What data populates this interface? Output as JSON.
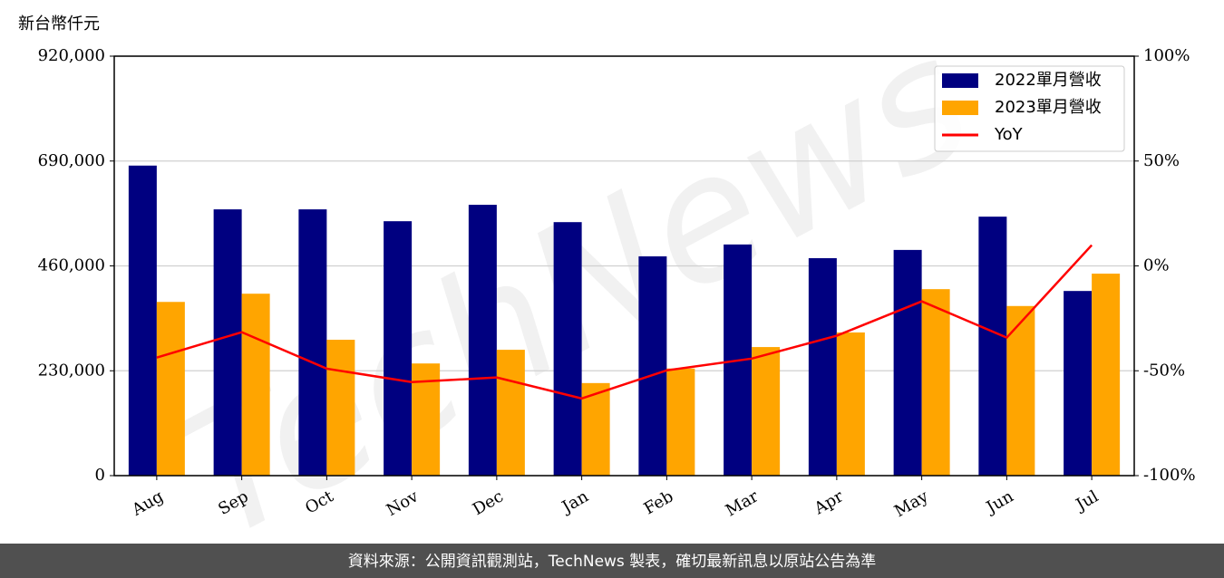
{
  "chart_data": {
    "type": "bar-line",
    "y_label": "新台幣仟元",
    "categories": [
      "Aug",
      "Sep",
      "Oct",
      "Nov",
      "Dec",
      "Jan",
      "Feb",
      "Mar",
      "Apr",
      "May",
      "Jun",
      "Jul"
    ],
    "series": [
      {
        "name": "2022單月營收",
        "color": "#000080",
        "type": "bar",
        "values": [
          680000,
          584000,
          584000,
          558000,
          594000,
          556000,
          481000,
          507000,
          477000,
          495000,
          568000,
          405000
        ]
      },
      {
        "name": "2023單月營收",
        "color": "#ffa500",
        "type": "bar",
        "values": [
          381000,
          399000,
          298000,
          246000,
          276000,
          203000,
          235000,
          282000,
          314000,
          409000,
          372000,
          443000
        ]
      },
      {
        "name": "YoY",
        "color": "#ff0000",
        "type": "line",
        "axis": "y2",
        "values": [
          -43.7,
          -31.6,
          -49,
          -55.4,
          -53.2,
          -63.2,
          -49.8,
          -44.2,
          -33.3,
          -16.9,
          -34.2,
          9.9
        ]
      }
    ],
    "ylim": [
      0,
      920000
    ],
    "yticks": [
      {
        "value": 0,
        "label": "0"
      },
      {
        "value": 230000,
        "label": "230,000"
      },
      {
        "value": 460000,
        "label": "460,000"
      },
      {
        "value": 690000,
        "label": "690,000"
      },
      {
        "value": 920000,
        "label": "920,000"
      }
    ],
    "y2lim": [
      -100,
      100
    ],
    "y2ticks": [
      {
        "value": -100,
        "label": "-100%"
      },
      {
        "value": -50,
        "label": "-50%"
      },
      {
        "value": 0,
        "label": "0%"
      },
      {
        "value": 50,
        "label": "50%"
      },
      {
        "value": 100,
        "label": "100%"
      }
    ],
    "grid": true,
    "legend": "upper right",
    "watermark": "TechNews",
    "footer": "資料來源：公開資訊觀測站，TechNews 製表，確切最新訊息以原站公告為準"
  }
}
